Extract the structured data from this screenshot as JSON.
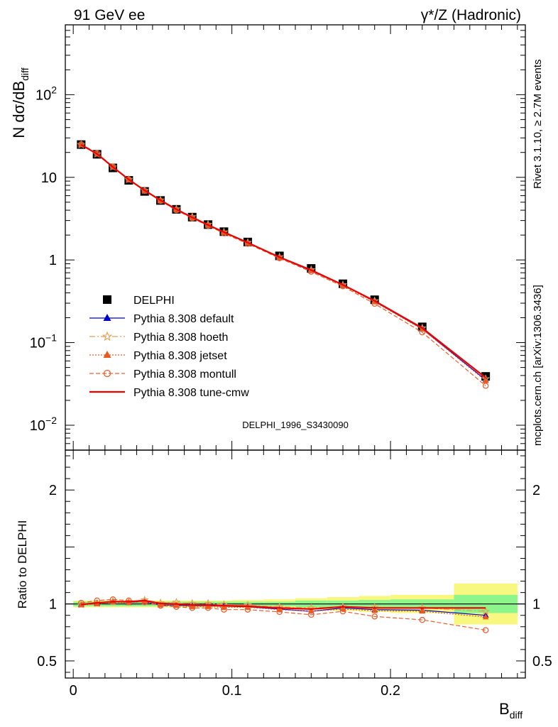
{
  "header": {
    "left_label": "91 GeV ee",
    "right_label": "γ*/Z (Hadronic)",
    "side_label_top": "Rivet 3.1.10, ≥ 2.7M events",
    "side_label_bottom": "mcplots.cern.ch [arXiv:1306.3436]",
    "analysis_label": "DELPHI_1996_S3430090"
  },
  "chart_data": [
    {
      "type": "line",
      "panel": "main",
      "ylabel": "N dσ/dB",
      "ylabel_sub": "diff",
      "yscale": "log",
      "ylim": [
        0.005,
        700
      ],
      "xlim": [
        -0.005,
        0.285
      ],
      "y_ticks": [
        {
          "value": 0.01,
          "base": "10",
          "exp": "−2"
        },
        {
          "value": 0.1,
          "base": "10",
          "exp": "−1"
        },
        {
          "value": 1,
          "base": "1",
          "exp": ""
        },
        {
          "value": 10,
          "base": "10",
          "exp": ""
        },
        {
          "value": 100,
          "base": "10",
          "exp": "2"
        }
      ],
      "x": [
        0.005,
        0.015,
        0.025,
        0.035,
        0.045,
        0.055,
        0.065,
        0.075,
        0.085,
        0.095,
        0.11,
        0.13,
        0.15,
        0.17,
        0.19,
        0.22,
        0.26
      ],
      "series": [
        {
          "name": "DELPHI",
          "color": "#000000",
          "marker": "square",
          "line": "none",
          "values": [
            24.9,
            19.0,
            13.0,
            9.2,
            6.75,
            5.25,
            4.1,
            3.3,
            2.68,
            2.2,
            1.65,
            1.12,
            0.79,
            0.515,
            0.33,
            0.155,
            0.039
          ]
        },
        {
          "name": "Pythia 8.308 default",
          "color": "#0000cc",
          "marker": "triangle",
          "line": "solid",
          "values": [
            24.8,
            19.1,
            13.3,
            9.35,
            6.9,
            5.2,
            4.05,
            3.25,
            2.64,
            2.15,
            1.61,
            1.07,
            0.74,
            0.5,
            0.315,
            0.147,
            0.0353
          ]
        },
        {
          "name": "Pythia 8.308 hoeth",
          "color": "#e8a050",
          "marker": "star",
          "line": "dashdot",
          "values": [
            24.8,
            19.1,
            13.3,
            9.4,
            6.95,
            5.3,
            4.15,
            3.33,
            2.7,
            2.18,
            1.63,
            1.09,
            0.76,
            0.5,
            0.32,
            0.15,
            0.0365
          ]
        },
        {
          "name": "Pythia 8.308 jetset",
          "color": "#e85a20",
          "marker": "triangle",
          "line": "dotted",
          "values": [
            24.7,
            19.0,
            13.2,
            9.3,
            6.9,
            5.2,
            4.05,
            3.22,
            2.62,
            2.14,
            1.6,
            1.06,
            0.74,
            0.49,
            0.31,
            0.145,
            0.0345
          ]
        },
        {
          "name": "Pythia 8.308 montull",
          "color": "#e86030",
          "marker": "circle",
          "line": "dashed",
          "values": [
            25.1,
            19.6,
            13.5,
            9.45,
            6.85,
            5.2,
            4.0,
            3.2,
            2.6,
            2.1,
            1.57,
            1.05,
            0.72,
            0.48,
            0.295,
            0.133,
            0.03
          ]
        },
        {
          "name": "Pythia 8.308 tune-cmw",
          "color": "#ee0000",
          "marker": "none",
          "line": "solid",
          "values": [
            24.8,
            19.2,
            13.3,
            9.4,
            6.95,
            5.28,
            4.1,
            3.27,
            2.65,
            2.17,
            1.62,
            1.08,
            0.755,
            0.5,
            0.32,
            0.15,
            0.0376
          ]
        }
      ]
    },
    {
      "type": "line",
      "panel": "ratio",
      "xlabel": "B",
      "xlabel_sub": "diff",
      "ylabel": "Ratio to DELPHI",
      "ylim": [
        0.35,
        2.35
      ],
      "xlim": [
        -0.005,
        0.285
      ],
      "y_ticks": [
        0.5,
        1,
        2
      ],
      "y_tick_labels": [
        "0.5",
        "1",
        "2"
      ],
      "x_ticks": [
        0,
        0.1,
        0.2
      ],
      "x_tick_labels": [
        "0",
        "0.1",
        "0.2"
      ],
      "bins": [
        [
          0.0,
          0.01
        ],
        [
          0.01,
          0.02
        ],
        [
          0.02,
          0.03
        ],
        [
          0.03,
          0.04
        ],
        [
          0.04,
          0.05
        ],
        [
          0.05,
          0.06
        ],
        [
          0.06,
          0.07
        ],
        [
          0.07,
          0.08
        ],
        [
          0.08,
          0.09
        ],
        [
          0.09,
          0.1
        ],
        [
          0.1,
          0.12
        ],
        [
          0.12,
          0.14
        ],
        [
          0.14,
          0.16
        ],
        [
          0.16,
          0.18
        ],
        [
          0.18,
          0.2
        ],
        [
          0.2,
          0.24
        ],
        [
          0.24,
          0.28
        ]
      ],
      "band_stat": [
        0.02,
        0.02,
        0.02,
        0.02,
        0.02,
        0.02,
        0.02,
        0.02,
        0.02,
        0.02,
        0.02,
        0.02,
        0.03,
        0.03,
        0.035,
        0.04,
        0.08
      ],
      "band_total": [
        0.03,
        0.03,
        0.03,
        0.03,
        0.03,
        0.03,
        0.03,
        0.03,
        0.03,
        0.03,
        0.035,
        0.04,
        0.05,
        0.06,
        0.07,
        0.08,
        0.18
      ],
      "band_colors": {
        "stat": "#8cf58c",
        "total": "#f8f880"
      },
      "x": [
        0.005,
        0.015,
        0.025,
        0.035,
        0.045,
        0.055,
        0.065,
        0.075,
        0.085,
        0.095,
        0.11,
        0.13,
        0.15,
        0.17,
        0.19,
        0.22,
        0.26
      ],
      "series": [
        {
          "name": "Pythia 8.308 default",
          "color": "#0000cc",
          "marker": "triangle",
          "line": "solid",
          "values": [
            0.995,
            1.005,
            1.02,
            1.015,
            1.02,
            0.99,
            0.99,
            0.985,
            0.985,
            0.98,
            0.975,
            0.955,
            0.935,
            0.965,
            0.95,
            0.945,
            0.9
          ]
        },
        {
          "name": "Pythia 8.308 hoeth",
          "color": "#e8a050",
          "marker": "star",
          "line": "dashdot",
          "values": [
            0.995,
            1.005,
            1.025,
            1.02,
            1.035,
            1.01,
            1.015,
            1.005,
            1.005,
            0.995,
            0.99,
            0.975,
            0.965,
            0.975,
            0.97,
            0.965,
            0.935
          ]
        },
        {
          "name": "Pythia 8.308 jetset",
          "color": "#e85a20",
          "marker": "triangle",
          "line": "dotted",
          "values": [
            0.99,
            1.0,
            1.015,
            1.01,
            1.02,
            0.99,
            0.985,
            0.975,
            0.975,
            0.97,
            0.97,
            0.95,
            0.935,
            0.955,
            0.94,
            0.935,
            0.885
          ]
        },
        {
          "name": "Pythia 8.308 montull",
          "color": "#e86030",
          "marker": "circle",
          "line": "dashed",
          "values": [
            1.01,
            1.03,
            1.04,
            1.03,
            1.015,
            0.985,
            0.975,
            0.965,
            0.965,
            0.95,
            0.95,
            0.93,
            0.905,
            0.935,
            0.89,
            0.86,
            0.77
          ]
        },
        {
          "name": "Pythia 8.308 tune-cmw",
          "color": "#ee0000",
          "marker": "none",
          "line": "solid",
          "values": [
            0.995,
            1.01,
            1.02,
            1.02,
            1.03,
            1.005,
            1.0,
            0.99,
            0.99,
            0.985,
            0.98,
            0.965,
            0.955,
            0.975,
            0.965,
            0.965,
            0.965
          ]
        }
      ]
    }
  ]
}
